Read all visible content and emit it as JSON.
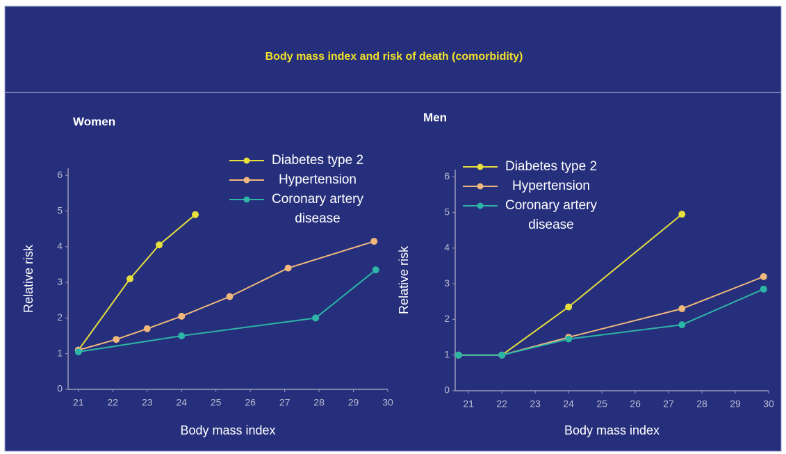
{
  "title": "Body mass index and risk of death (comorbidity)",
  "chart_data": [
    {
      "type": "line",
      "title": "Women",
      "xlabel": "Body mass index",
      "ylabel": "Relative risk",
      "xlim": [
        20.7,
        30
      ],
      "ylim": [
        0,
        6.2
      ],
      "xticks": [
        21,
        22,
        23,
        24,
        25,
        26,
        27,
        28,
        29,
        30
      ],
      "yticks": [
        0,
        1,
        2,
        3,
        4,
        5,
        6
      ],
      "series": [
        {
          "name": "Diabetes type 2",
          "color": "#e6df3c",
          "x": [
            21.0,
            22.5,
            23.35,
            24.4
          ],
          "values": [
            1.1,
            3.1,
            4.05,
            4.9
          ]
        },
        {
          "name": "Hypertension",
          "color": "#f0b87c",
          "x": [
            21.0,
            22.1,
            23.0,
            24.0,
            25.4,
            27.1,
            29.6
          ],
          "values": [
            1.1,
            1.4,
            1.7,
            2.05,
            2.6,
            3.4,
            4.15
          ]
        },
        {
          "name": "Coronary artery disease",
          "color": "#2db5a6",
          "x": [
            21.0,
            24.0,
            27.9,
            29.65
          ],
          "values": [
            1.05,
            1.5,
            2.0,
            3.35
          ]
        }
      ]
    },
    {
      "type": "line",
      "title": "Men",
      "xlabel": "Body mass index",
      "ylabel": "Relative risk",
      "xlim": [
        20.6,
        30
      ],
      "ylim": [
        0,
        6.2
      ],
      "xticks": [
        21,
        22,
        23,
        24,
        25,
        26,
        27,
        28,
        29,
        30
      ],
      "yticks": [
        0,
        1,
        2,
        3,
        4,
        5,
        6
      ],
      "series": [
        {
          "name": "Diabetes type 2",
          "color": "#e6df3c",
          "x": [
            20.7,
            22.0,
            24.0,
            27.4
          ],
          "values": [
            1.0,
            1.0,
            2.35,
            4.95
          ]
        },
        {
          "name": "Hypertension",
          "color": "#f0b87c",
          "x": [
            20.7,
            22.0,
            24.0,
            27.4,
            29.85
          ],
          "values": [
            1.0,
            1.0,
            1.5,
            2.3,
            3.2
          ]
        },
        {
          "name": "Coronary artery disease",
          "color": "#2db5a6",
          "x": [
            20.7,
            22.0,
            24.0,
            27.4,
            29.85
          ],
          "values": [
            1.0,
            1.0,
            1.45,
            1.85,
            2.85
          ]
        }
      ]
    }
  ]
}
